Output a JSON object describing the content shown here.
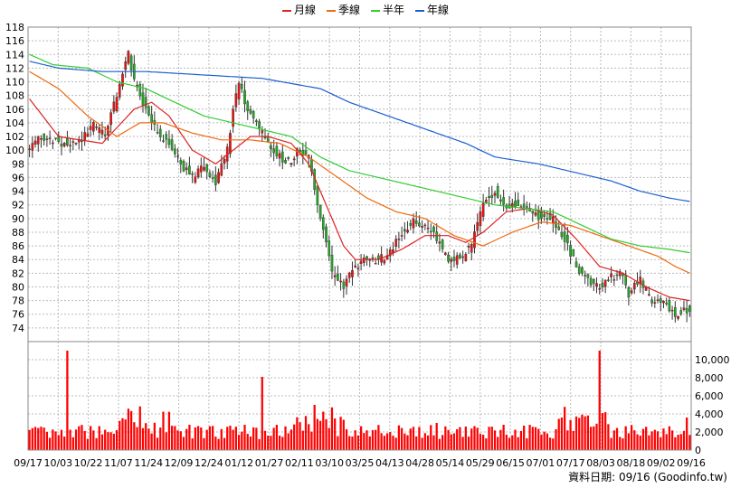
{
  "legend": [
    {
      "label": "月線",
      "color": "#dd2222"
    },
    {
      "label": "季線",
      "color": "#ee6a10"
    },
    {
      "label": "半年",
      "color": "#33cc33"
    },
    {
      "label": "年線",
      "color": "#1a5fd0"
    }
  ],
  "source_text": "資料日期: 09/16 (Goodinfo.tw)",
  "chart_data": {
    "type": "candlestick",
    "price_axis": {
      "ylim": [
        72,
        118
      ],
      "ticks": [
        74,
        76,
        78,
        80,
        82,
        84,
        86,
        88,
        90,
        92,
        94,
        96,
        98,
        100,
        102,
        104,
        106,
        108,
        110,
        112,
        114,
        116,
        118
      ]
    },
    "volume_axis": {
      "ylim": [
        0,
        12000
      ],
      "ticks": [
        0,
        2000,
        4000,
        6000,
        8000,
        10000
      ],
      "tick_labels": [
        "0",
        "2,000",
        "4,000",
        "6,000",
        "8,000",
        "10,000"
      ]
    },
    "x_tick_labels": [
      "09/17",
      "10/03",
      "10/22",
      "11/07",
      "11/24",
      "12/09",
      "12/24",
      "01/12",
      "01/27",
      "02/11",
      "03/10",
      "03/25",
      "04/13",
      "04/28",
      "05/14",
      "05/29",
      "06/15",
      "07/01",
      "07/17",
      "08/03",
      "08/18",
      "09/02",
      "09/16"
    ],
    "grid": true,
    "legend_position": "top-center",
    "colors": {
      "up": "#ee1111",
      "down": "#22aa22",
      "volume": "#ff0000"
    },
    "price_anchors": [
      [
        0,
        100
      ],
      [
        4,
        102
      ],
      [
        12,
        101
      ],
      [
        16,
        101
      ],
      [
        22,
        103.5
      ],
      [
        26,
        102
      ],
      [
        30,
        108
      ],
      [
        34,
        114
      ],
      [
        36,
        110
      ],
      [
        40,
        106
      ],
      [
        44,
        102.5
      ],
      [
        48,
        101
      ],
      [
        52,
        98
      ],
      [
        56,
        96
      ],
      [
        60,
        98
      ],
      [
        64,
        95
      ],
      [
        68,
        100
      ],
      [
        70,
        106
      ],
      [
        72,
        110
      ],
      [
        74,
        107
      ],
      [
        78,
        104
      ],
      [
        82,
        101
      ],
      [
        86,
        99
      ],
      [
        90,
        98
      ],
      [
        92,
        100
      ],
      [
        96,
        99
      ],
      [
        98,
        94
      ],
      [
        100,
        90
      ],
      [
        102,
        86
      ],
      [
        104,
        82
      ],
      [
        108,
        80
      ],
      [
        112,
        83
      ],
      [
        116,
        84
      ],
      [
        120,
        84
      ],
      [
        124,
        85
      ],
      [
        128,
        88
      ],
      [
        132,
        89.5
      ],
      [
        136,
        89
      ],
      [
        140,
        87
      ],
      [
        144,
        84
      ],
      [
        148,
        84
      ],
      [
        152,
        86
      ],
      [
        156,
        92
      ],
      [
        160,
        94
      ],
      [
        164,
        92
      ],
      [
        168,
        92
      ],
      [
        172,
        91
      ],
      [
        176,
        90
      ],
      [
        180,
        90
      ],
      [
        184,
        87
      ],
      [
        188,
        83
      ],
      [
        192,
        81
      ],
      [
        196,
        80
      ],
      [
        200,
        81.5
      ],
      [
        204,
        82
      ],
      [
        206,
        79
      ],
      [
        210,
        81
      ],
      [
        214,
        78
      ],
      [
        218,
        78
      ],
      [
        222,
        76
      ],
      [
        226,
        76.5
      ],
      [
        227,
        76.8
      ]
    ],
    "ma_lines": [
      {
        "name": "月線",
        "points": [
          [
            0,
            107.5
          ],
          [
            10,
            102
          ],
          [
            25,
            101
          ],
          [
            36,
            106
          ],
          [
            42,
            107
          ],
          [
            48,
            105
          ],
          [
            56,
            100
          ],
          [
            64,
            98
          ],
          [
            70,
            100
          ],
          [
            76,
            102
          ],
          [
            82,
            102
          ],
          [
            90,
            101
          ],
          [
            96,
            98
          ],
          [
            102,
            92
          ],
          [
            108,
            86
          ],
          [
            112,
            84
          ],
          [
            120,
            84
          ],
          [
            128,
            85.5
          ],
          [
            136,
            87.5
          ],
          [
            144,
            87.5
          ],
          [
            150,
            86.5
          ],
          [
            156,
            88
          ],
          [
            164,
            91
          ],
          [
            172,
            91.5
          ],
          [
            180,
            90.5
          ],
          [
            188,
            87
          ],
          [
            196,
            83
          ],
          [
            204,
            82
          ],
          [
            212,
            80
          ],
          [
            220,
            78.5
          ],
          [
            227,
            78
          ]
        ]
      },
      {
        "name": "季線",
        "points": [
          [
            0,
            111.5
          ],
          [
            10,
            109
          ],
          [
            20,
            105
          ],
          [
            30,
            102
          ],
          [
            38,
            104
          ],
          [
            46,
            104
          ],
          [
            56,
            102.5
          ],
          [
            66,
            101.5
          ],
          [
            76,
            101.5
          ],
          [
            86,
            101
          ],
          [
            96,
            99
          ],
          [
            106,
            96
          ],
          [
            116,
            93
          ],
          [
            126,
            91
          ],
          [
            136,
            90
          ],
          [
            146,
            87.5
          ],
          [
            156,
            86
          ],
          [
            166,
            88
          ],
          [
            176,
            89.5
          ],
          [
            186,
            89
          ],
          [
            196,
            87.5
          ],
          [
            206,
            86
          ],
          [
            216,
            84.5
          ],
          [
            222,
            83
          ],
          [
            227,
            82
          ]
        ]
      },
      {
        "name": "半年",
        "points": [
          [
            0,
            114
          ],
          [
            8,
            112.5
          ],
          [
            20,
            112
          ],
          [
            30,
            110
          ],
          [
            40,
            109
          ],
          [
            50,
            107
          ],
          [
            60,
            105
          ],
          [
            70,
            104
          ],
          [
            80,
            103
          ],
          [
            90,
            102
          ],
          [
            100,
            99
          ],
          [
            110,
            97
          ],
          [
            120,
            96
          ],
          [
            130,
            95
          ],
          [
            140,
            94
          ],
          [
            150,
            93
          ],
          [
            160,
            92
          ],
          [
            170,
            91.5
          ],
          [
            180,
            91
          ],
          [
            190,
            89
          ],
          [
            200,
            87
          ],
          [
            210,
            86
          ],
          [
            220,
            85.5
          ],
          [
            227,
            85
          ]
        ]
      },
      {
        "name": "年線",
        "points": [
          [
            0,
            113
          ],
          [
            10,
            112
          ],
          [
            25,
            111.5
          ],
          [
            40,
            111.5
          ],
          [
            60,
            111
          ],
          [
            80,
            110.5
          ],
          [
            100,
            109
          ],
          [
            110,
            107
          ],
          [
            130,
            104
          ],
          [
            150,
            101
          ],
          [
            160,
            99
          ],
          [
            175,
            98
          ],
          [
            190,
            96.5
          ],
          [
            200,
            95.5
          ],
          [
            210,
            94
          ],
          [
            220,
            93
          ],
          [
            227,
            92.5
          ]
        ]
      }
    ]
  }
}
